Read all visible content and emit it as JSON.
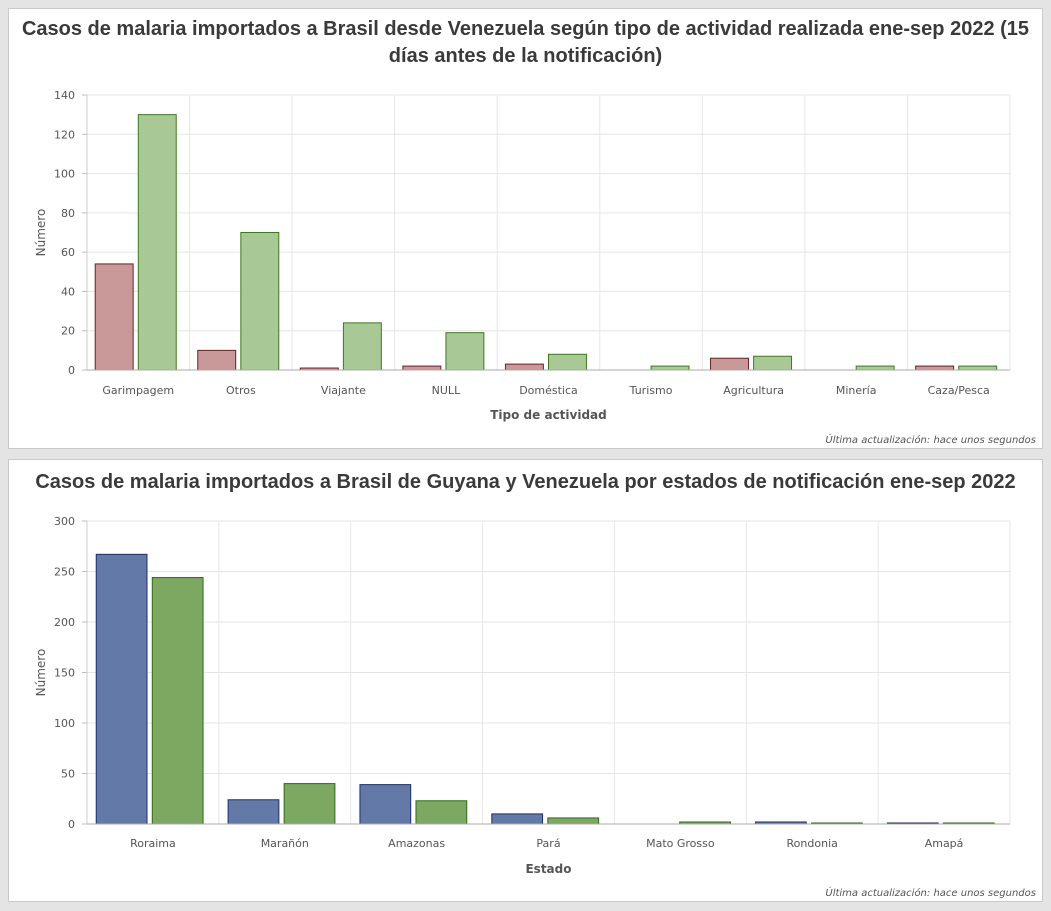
{
  "footer_text": "Última actualización: hace unos segundos",
  "chart_data": [
    {
      "type": "bar",
      "title": "Casos de malaria importados a Brasil desde Venezuela según tipo de actividad realizada ene-sep 2022 (15 días antes de la notificación)",
      "xlabel": "Tipo de actividad",
      "ylabel": "Número",
      "ylim": [
        0,
        140
      ],
      "yticks": [
        0,
        20,
        40,
        60,
        80,
        100,
        120,
        140
      ],
      "grid": true,
      "categories": [
        "Garimpagem",
        "Otros",
        "Viajante",
        "NULL",
        "Doméstica",
        "Turismo",
        "Agricultura",
        "Minería",
        "Caza/Pesca"
      ],
      "series": [
        {
          "values": [
            54,
            10,
            1,
            2,
            3,
            0,
            6,
            0,
            2
          ],
          "fill": "#c99898",
          "stroke": "#6e1f24"
        },
        {
          "values": [
            130,
            70,
            24,
            19,
            8,
            2,
            7,
            2,
            2
          ],
          "fill": "#a8c896",
          "stroke": "#3d7a1e"
        }
      ]
    },
    {
      "type": "bar",
      "title": "Casos de malaria importados a Brasil de Guyana y Venezuela por estados de notificación ene-sep 2022",
      "xlabel": "Estado",
      "ylabel": "Número",
      "ylim": [
        0,
        300
      ],
      "yticks": [
        0,
        50,
        100,
        150,
        200,
        250,
        300
      ],
      "grid": true,
      "categories": [
        "Roraima",
        "Marañón",
        "Amazonas",
        "Pará",
        "Mato Grosso",
        "Rondonia",
        "Amapá"
      ],
      "series": [
        {
          "values": [
            267,
            24,
            39,
            10,
            0,
            2,
            1
          ],
          "fill": "#6379a8",
          "stroke": "#1d2f66"
        },
        {
          "values": [
            244,
            40,
            23,
            6,
            2,
            1,
            1
          ],
          "fill": "#7ca862",
          "stroke": "#2f6a14"
        }
      ]
    }
  ]
}
